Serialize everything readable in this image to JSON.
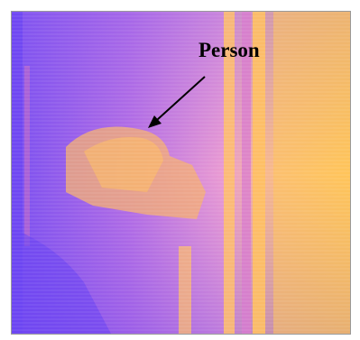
{
  "annotation": {
    "label": "Person"
  },
  "colors": {
    "cool": "#7a4cf0",
    "mid": "#e68ad8",
    "warm": "#ffc35a",
    "arrow": "#000000"
  }
}
